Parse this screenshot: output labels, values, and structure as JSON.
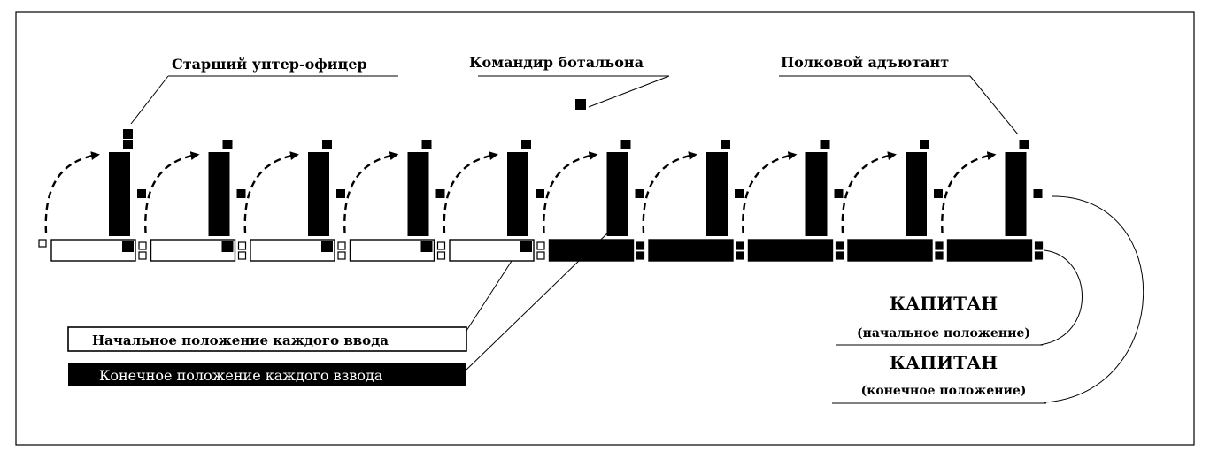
{
  "labels": {
    "senior_nco": "Старший  унтер-офицер",
    "battalion_commander": "Командир ботальона",
    "regimental_adjutant": "Полковой адъютант",
    "legend_initial": "Начальное положение каждого ввода",
    "legend_final": "Конечное положение каждого взвода",
    "captain_1": "КАПИТАН",
    "captain_1_sub": "(начальное положение)",
    "captain_2": "КАПИТАН",
    "captain_2_sub": "(конечное положение)"
  },
  "platoons": {
    "count": 10,
    "initial_fill": "#ffffff",
    "final_fill": "#000000"
  }
}
